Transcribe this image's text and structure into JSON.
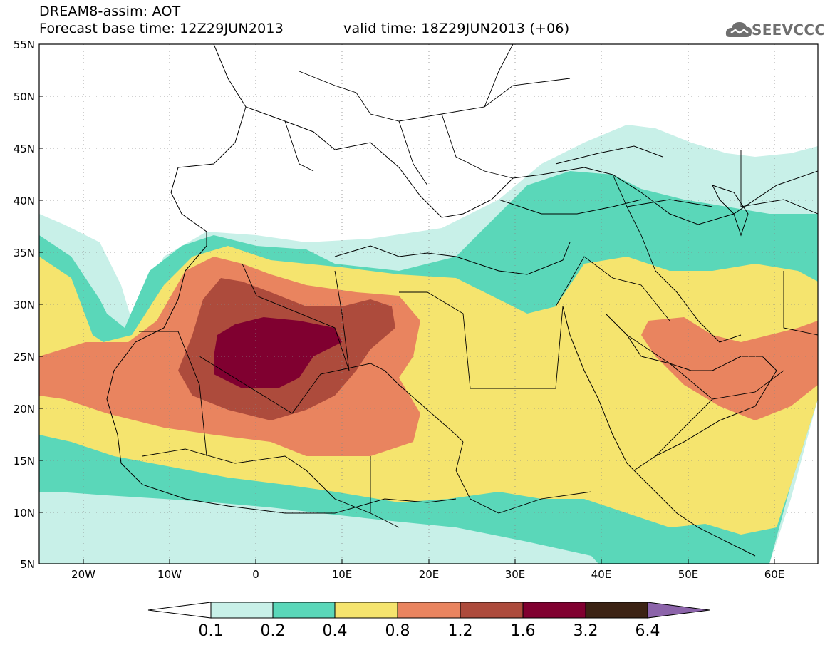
{
  "header": {
    "model_title": "DREAM8-assim: AOT",
    "base_time": "Forecast base time: 12Z29JUN2013",
    "valid_time": "valid time: 18Z29JUN2013 (+06)"
  },
  "logo": {
    "text": "SEEVCCC",
    "icon": "cloud-icon"
  },
  "map": {
    "lat_labels": [
      "55N",
      "50N",
      "45N",
      "40N",
      "35N",
      "30N",
      "25N",
      "20N",
      "15N",
      "10N",
      "5N"
    ],
    "lon_labels": [
      "20W",
      "10W",
      "0",
      "10E",
      "20E",
      "30E",
      "40E",
      "50E",
      "60E"
    ],
    "lon_range": [
      -25,
      65
    ],
    "lat_range": [
      5,
      55
    ]
  },
  "colorbar": {
    "labels": [
      "0.1",
      "0.2",
      "0.4",
      "0.8",
      "1.2",
      "1.6",
      "3.2",
      "6.4"
    ],
    "colors": [
      "#ffffff",
      "#c8f0e8",
      "#5ad7b9",
      "#f5e46e",
      "#e9845f",
      "#ad4b3c",
      "#800030",
      "#3c2314",
      "#8c64aa"
    ]
  }
}
